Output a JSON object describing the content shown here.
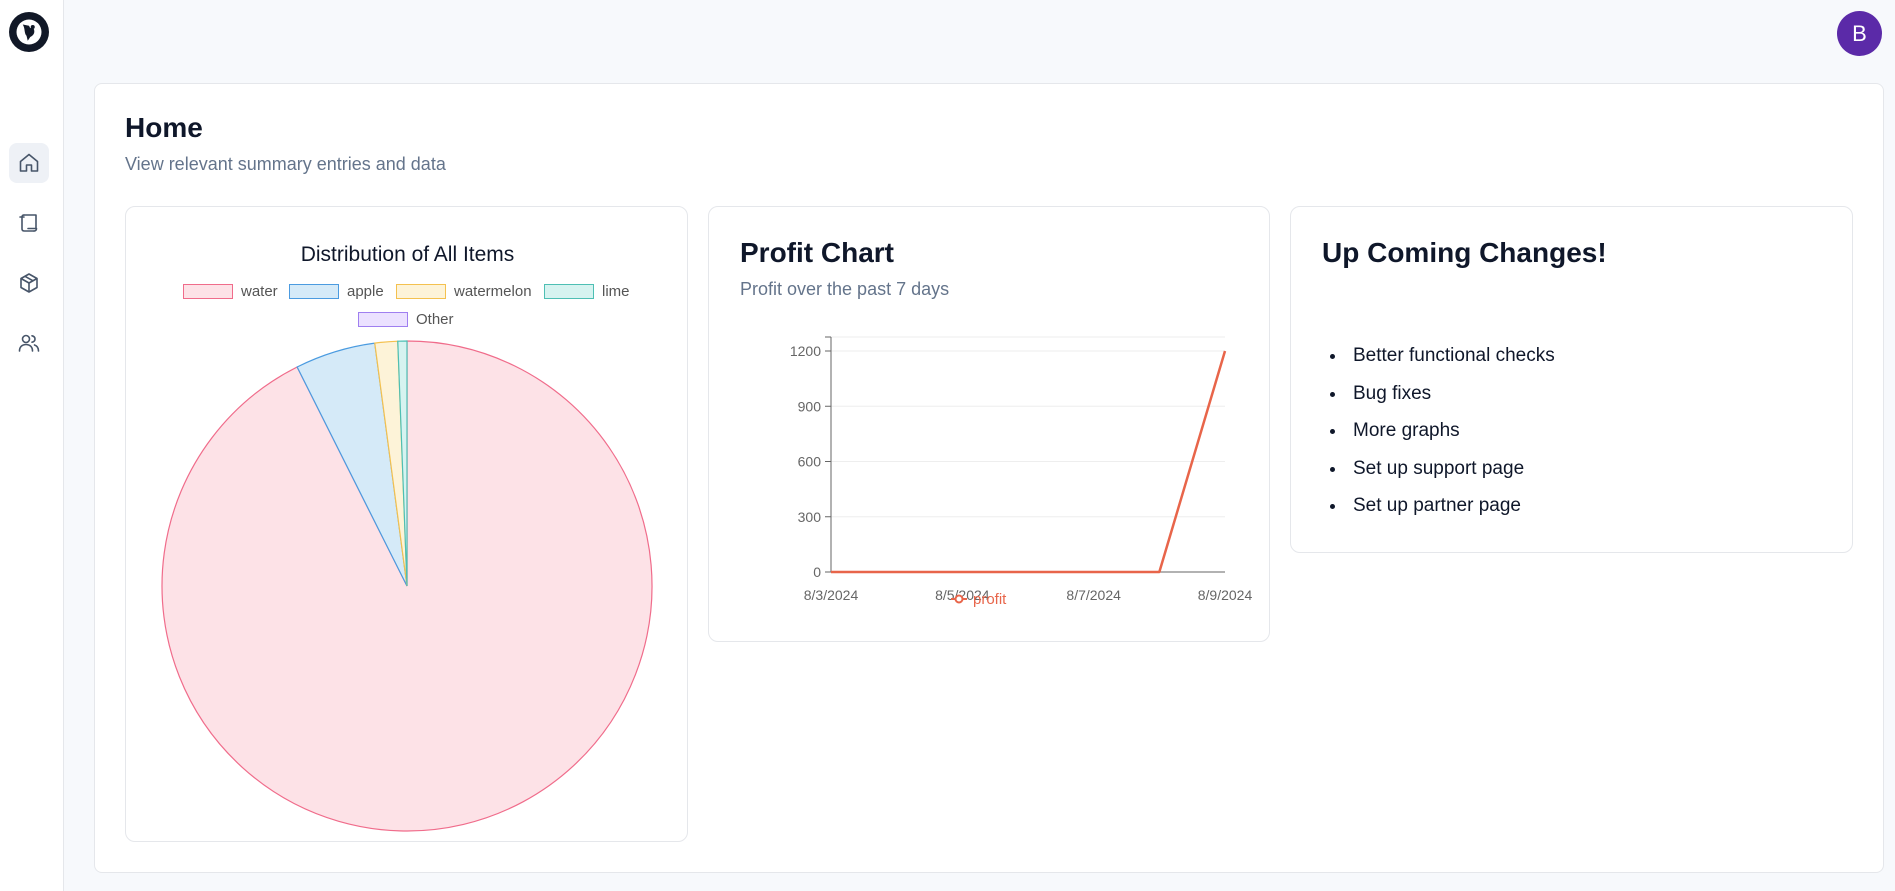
{
  "header": {
    "avatar_initial": "B"
  },
  "sidebar": {
    "items": [
      {
        "name": "home",
        "icon": "home-icon",
        "active": true
      },
      {
        "name": "scroll",
        "icon": "scroll-icon",
        "active": false
      },
      {
        "name": "package",
        "icon": "package-icon",
        "active": false
      },
      {
        "name": "users",
        "icon": "users-icon",
        "active": false
      }
    ]
  },
  "page": {
    "title": "Home",
    "subtitle": "View relevant summary entries and data"
  },
  "pie_card": {
    "title": "Distribution of All Items",
    "legend": [
      {
        "label": "water",
        "fill": "#fde2e7",
        "stroke": "#f06c8b"
      },
      {
        "label": "apple",
        "fill": "#d5eaf8",
        "stroke": "#4b9be0"
      },
      {
        "label": "watermelon",
        "fill": "#fdf3d8",
        "stroke": "#f4c14f"
      },
      {
        "label": "lime",
        "fill": "#d6f3f0",
        "stroke": "#4ebfb4"
      },
      {
        "label": "Other",
        "fill": "#ebe1ff",
        "stroke": "#9f7ff0"
      }
    ]
  },
  "profit_card": {
    "title": "Profit Chart",
    "subtitle": "Profit over the past 7 days",
    "legend_label": "profit",
    "line_color": "#e8654a"
  },
  "changes_card": {
    "title": "Up Coming Changes!",
    "items": [
      "Better functional checks",
      "Bug fixes",
      "More graphs",
      "Set up support page",
      "Set up partner page"
    ]
  },
  "chart_data": [
    {
      "type": "pie",
      "title": "Distribution of All Items",
      "categories": [
        "water",
        "apple",
        "watermelon",
        "lime",
        "Other"
      ],
      "values": [
        92.6,
        5.3,
        1.5,
        0.6,
        0.0
      ],
      "legend": "top"
    },
    {
      "type": "line",
      "title": "Profit Chart",
      "subtitle": "Profit over the past 7 days",
      "x": [
        "8/3/2024",
        "8/4/2024",
        "8/5/2024",
        "8/6/2024",
        "8/7/2024",
        "8/8/2024",
        "8/9/2024"
      ],
      "x_tick_labels": [
        "8/3/2024",
        "8/5/2024",
        "8/7/2024",
        "8/9/2024"
      ],
      "series": [
        {
          "name": "profit",
          "values": [
            0,
            0,
            0,
            0,
            0,
            0,
            1200
          ]
        }
      ],
      "ylim": [
        0,
        1200
      ],
      "yticks": [
        0,
        300,
        600,
        900,
        1200
      ],
      "grid": true,
      "legend": "bottom"
    }
  ]
}
